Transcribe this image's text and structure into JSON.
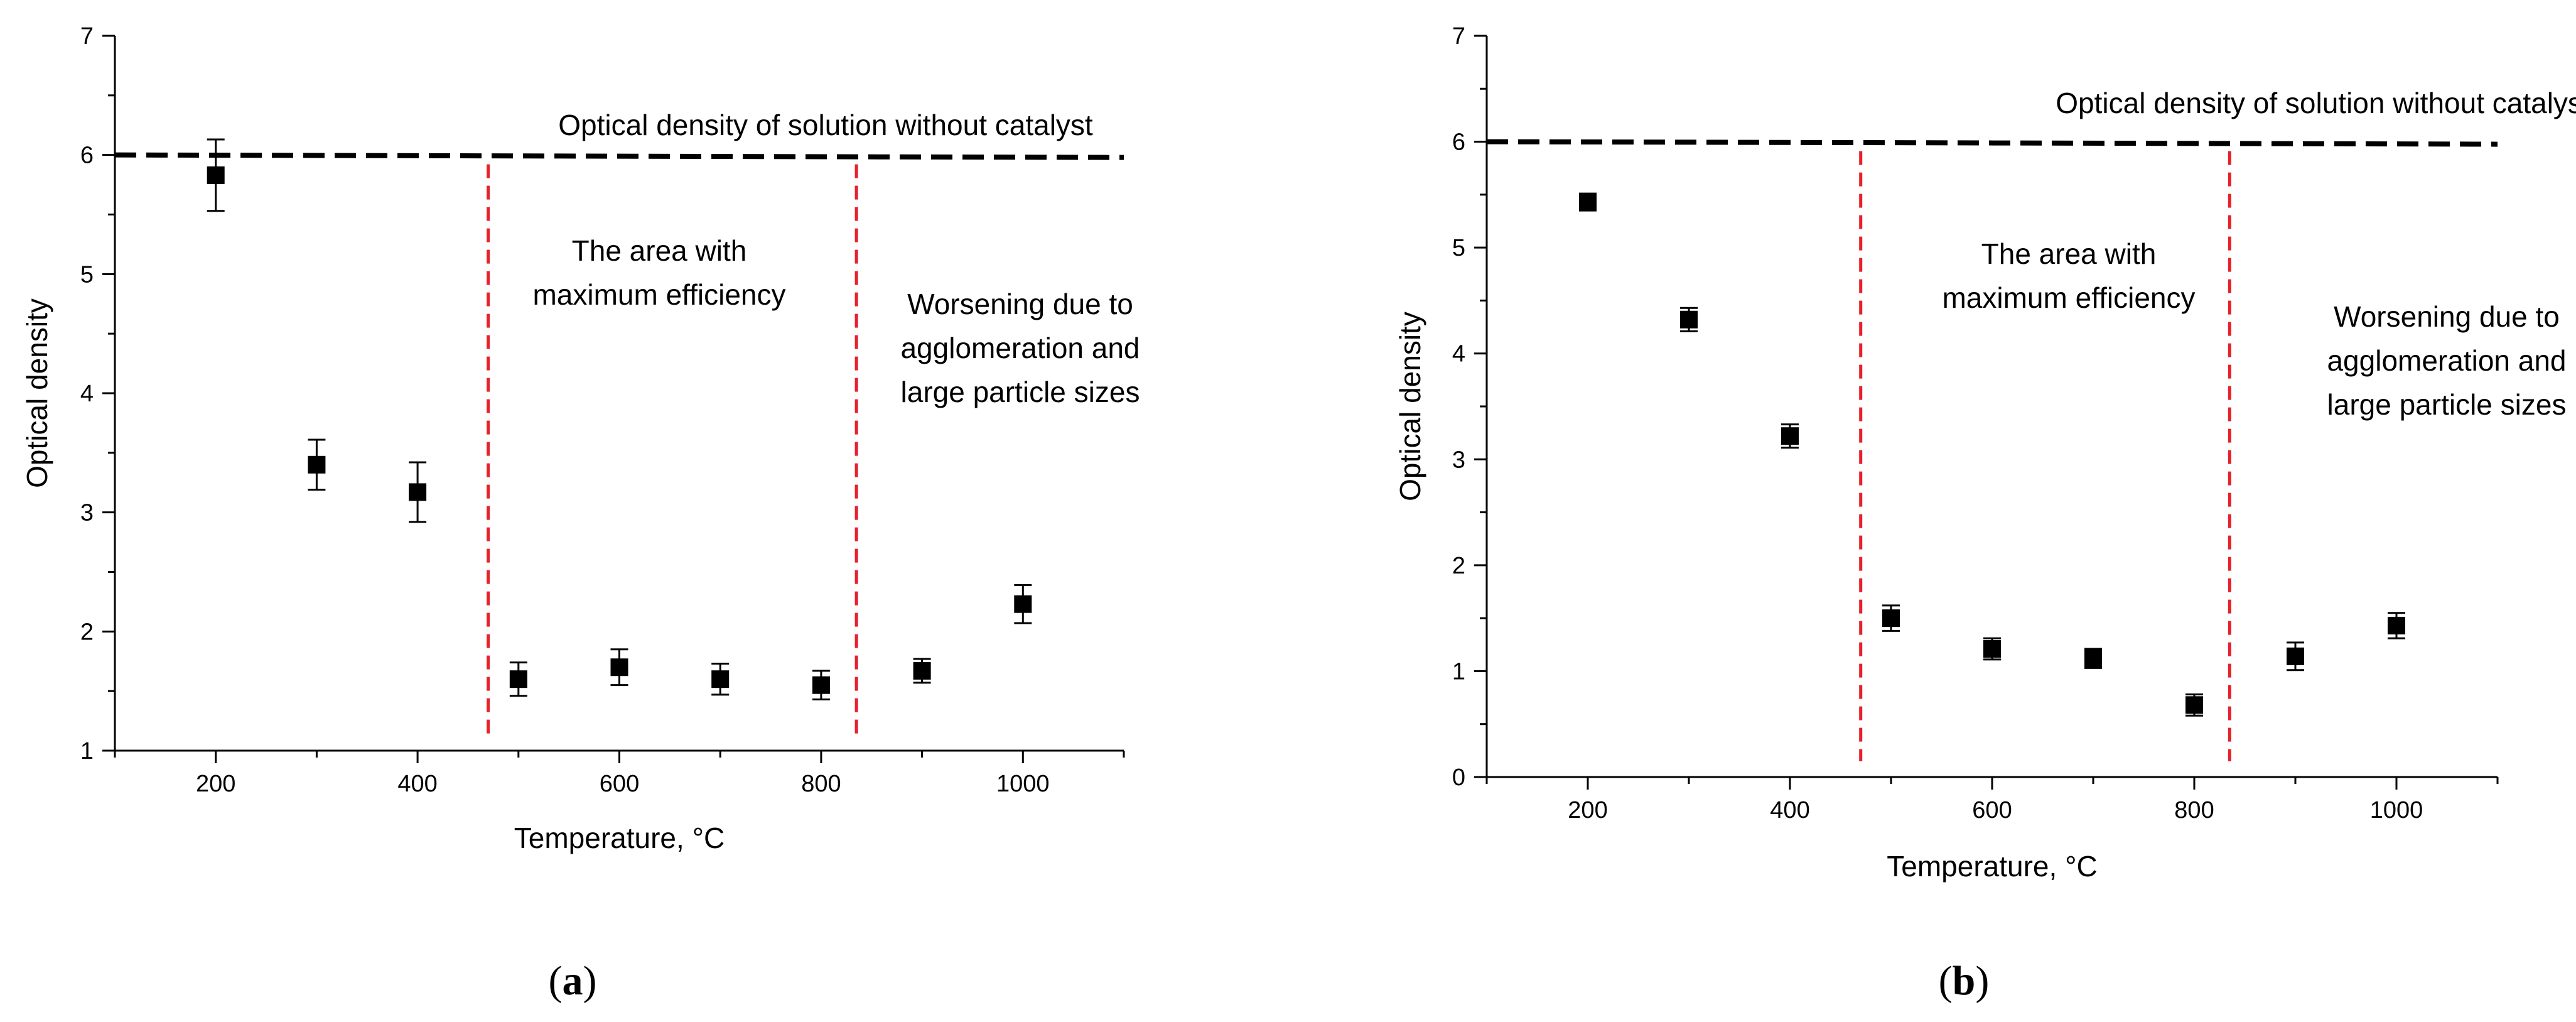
{
  "chart_data": [
    {
      "panel_label_open": "(",
      "panel_label_letter": "a",
      "panel_label_close": ")",
      "type": "scatter",
      "xlabel": "Temperature, °C",
      "ylabel": "Optical density",
      "xlim": [
        100,
        1100
      ],
      "ylim": [
        1,
        7
      ],
      "x_ticks": [
        200,
        400,
        600,
        800,
        1000
      ],
      "y_ticks": [
        1,
        2,
        3,
        4,
        5,
        6,
        7
      ],
      "series": [
        {
          "name": "Optical density",
          "points": [
            {
              "x": 200,
              "y": 5.83,
              "err": 0.3
            },
            {
              "x": 300,
              "y": 3.4,
              "err": 0.21
            },
            {
              "x": 400,
              "y": 3.17,
              "err": 0.25
            },
            {
              "x": 500,
              "y": 1.6,
              "err": 0.14
            },
            {
              "x": 600,
              "y": 1.7,
              "err": 0.15
            },
            {
              "x": 700,
              "y": 1.6,
              "err": 0.13
            },
            {
              "x": 800,
              "y": 1.55,
              "err": 0.12
            },
            {
              "x": 900,
              "y": 1.67,
              "err": 0.1
            },
            {
              "x": 1000,
              "y": 2.23,
              "err": 0.16
            }
          ]
        }
      ],
      "reference_line": {
        "label": "Optical density of solution without catalyst",
        "y": 6,
        "x_from": 100,
        "x_to": 1100
      },
      "dividers": [
        470,
        835
      ],
      "region_labels": {
        "middle": [
          "The area with",
          "maximum efficiency"
        ],
        "right": [
          "Worsening due to",
          "agglomeration and",
          "large particle sizes"
        ]
      }
    },
    {
      "panel_label_open": "(",
      "panel_label_letter": "b",
      "panel_label_close": ")",
      "type": "scatter",
      "xlabel": "Temperature, °C",
      "ylabel": "Optical density",
      "xlim": [
        100,
        1100
      ],
      "ylim": [
        0,
        7
      ],
      "x_ticks": [
        200,
        400,
        600,
        800,
        1000
      ],
      "y_ticks": [
        0,
        1,
        2,
        3,
        4,
        5,
        6,
        7
      ],
      "series": [
        {
          "name": "Optical density",
          "points": [
            {
              "x": 200,
              "y": 5.43,
              "err": 0.08
            },
            {
              "x": 300,
              "y": 4.32,
              "err": 0.11
            },
            {
              "x": 400,
              "y": 3.22,
              "err": 0.11
            },
            {
              "x": 500,
              "y": 1.5,
              "err": 0.12
            },
            {
              "x": 600,
              "y": 1.21,
              "err": 0.1
            },
            {
              "x": 700,
              "y": 1.12,
              "err": 0.09
            },
            {
              "x": 800,
              "y": 0.68,
              "err": 0.1
            },
            {
              "x": 900,
              "y": 1.14,
              "err": 0.13
            },
            {
              "x": 1000,
              "y": 1.43,
              "err": 0.12
            }
          ]
        }
      ],
      "reference_line": {
        "label": "Optical density of solution without catalyst",
        "y": 6,
        "x_from": 100,
        "x_to": 1100
      },
      "dividers": [
        470,
        835
      ],
      "region_labels": {
        "middle": [
          "The area with",
          "maximum efficiency"
        ],
        "right": [
          "Worsening due to",
          "agglomeration and",
          "large particle sizes"
        ]
      }
    }
  ],
  "colors": {
    "axis": "#000000",
    "marker": "#000000",
    "reference_line": "#000000",
    "divider": "#e8202a"
  }
}
